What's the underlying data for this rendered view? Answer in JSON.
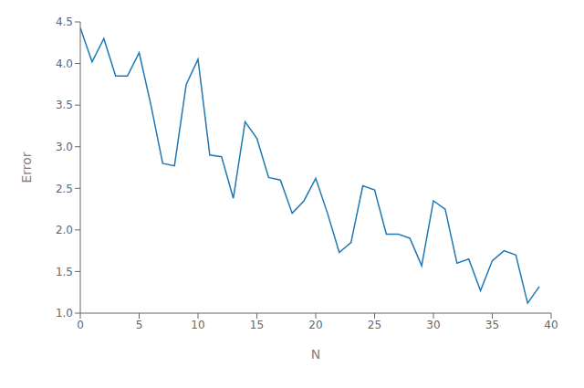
{
  "chart_data": {
    "type": "line",
    "xlabel": "N",
    "ylabel": "Error",
    "x": [
      0,
      1,
      2,
      3,
      4,
      5,
      6,
      7,
      8,
      9,
      10,
      11,
      12,
      13,
      14,
      15,
      16,
      17,
      18,
      19,
      20,
      21,
      22,
      23,
      24,
      25,
      26,
      27,
      28,
      29,
      30,
      31,
      32,
      33,
      34,
      35,
      36,
      37,
      38,
      39
    ],
    "values": [
      4.43,
      4.02,
      4.3,
      3.85,
      3.85,
      4.13,
      3.5,
      2.8,
      2.77,
      3.75,
      4.05,
      2.9,
      2.88,
      2.38,
      3.3,
      3.1,
      2.63,
      2.6,
      2.2,
      2.35,
      2.62,
      2.2,
      1.73,
      1.85,
      2.53,
      2.48,
      1.95,
      1.95,
      1.9,
      1.57,
      2.35,
      2.25,
      1.6,
      1.65,
      1.27,
      1.63,
      1.75,
      1.7,
      1.12,
      1.32
    ],
    "color": "#1f77b4",
    "xlim": [
      0,
      40
    ],
    "ylim": [
      1.0,
      4.5
    ],
    "xticks": [
      0,
      5,
      10,
      15,
      20,
      25,
      30,
      35,
      40
    ],
    "yticks": [
      {
        "value": 1.0,
        "label": "1.0"
      },
      1.5,
      {
        "value": 2.0,
        "label": "2.0"
      },
      2.5,
      {
        "value": 3.0,
        "label": "3.0"
      },
      3.5,
      {
        "value": 4.0,
        "label": "4.0"
      },
      4.5
    ],
    "grid": false
  }
}
